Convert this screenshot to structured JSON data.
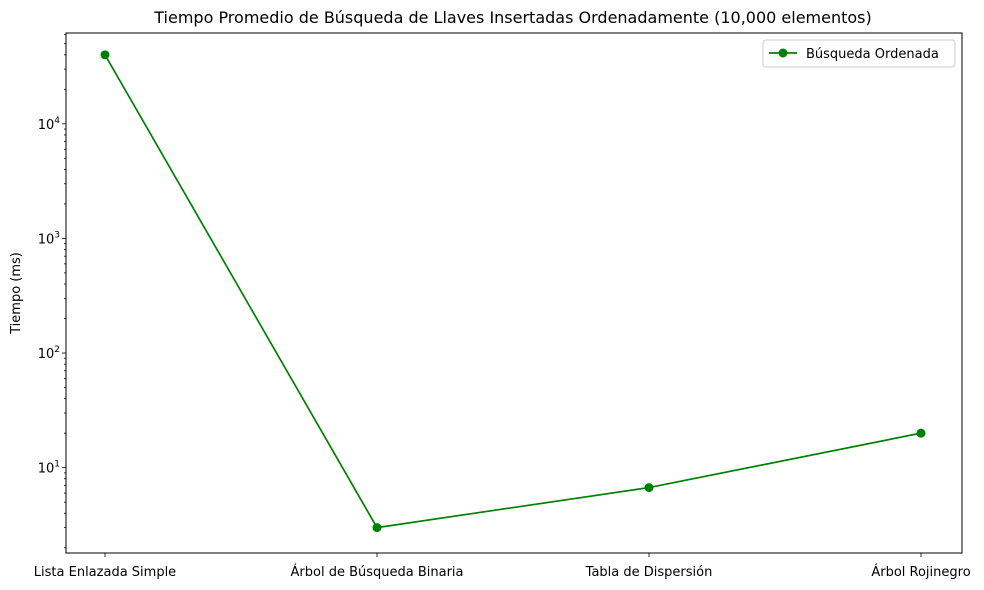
{
  "chart_data": {
    "type": "line",
    "title": "Tiempo Promedio de Búsqueda de Llaves Insertadas Ordenadamente (10,000 elementos)",
    "xlabel": "",
    "ylabel": "Tiempo (ms)",
    "yscale": "log",
    "ylim": [
      1.8,
      62000
    ],
    "categories": [
      "Lista Enlazada Simple",
      "Árbol de Búsqueda Binaria",
      "Tabla de Dispersión",
      "Árbol Rojinegro"
    ],
    "yticks": [
      {
        "value": 10,
        "base": "10",
        "exp": "1"
      },
      {
        "value": 100,
        "base": "10",
        "exp": "2"
      },
      {
        "value": 1000,
        "base": "10",
        "exp": "3"
      },
      {
        "value": 10000,
        "base": "10",
        "exp": "4"
      }
    ],
    "series": [
      {
        "name": "Búsqueda Ordenada",
        "color": "#008000",
        "marker": "circle",
        "values": [
          40000,
          3,
          6.7,
          20
        ]
      }
    ],
    "legend": {
      "position": "top-right"
    },
    "grid": false
  }
}
